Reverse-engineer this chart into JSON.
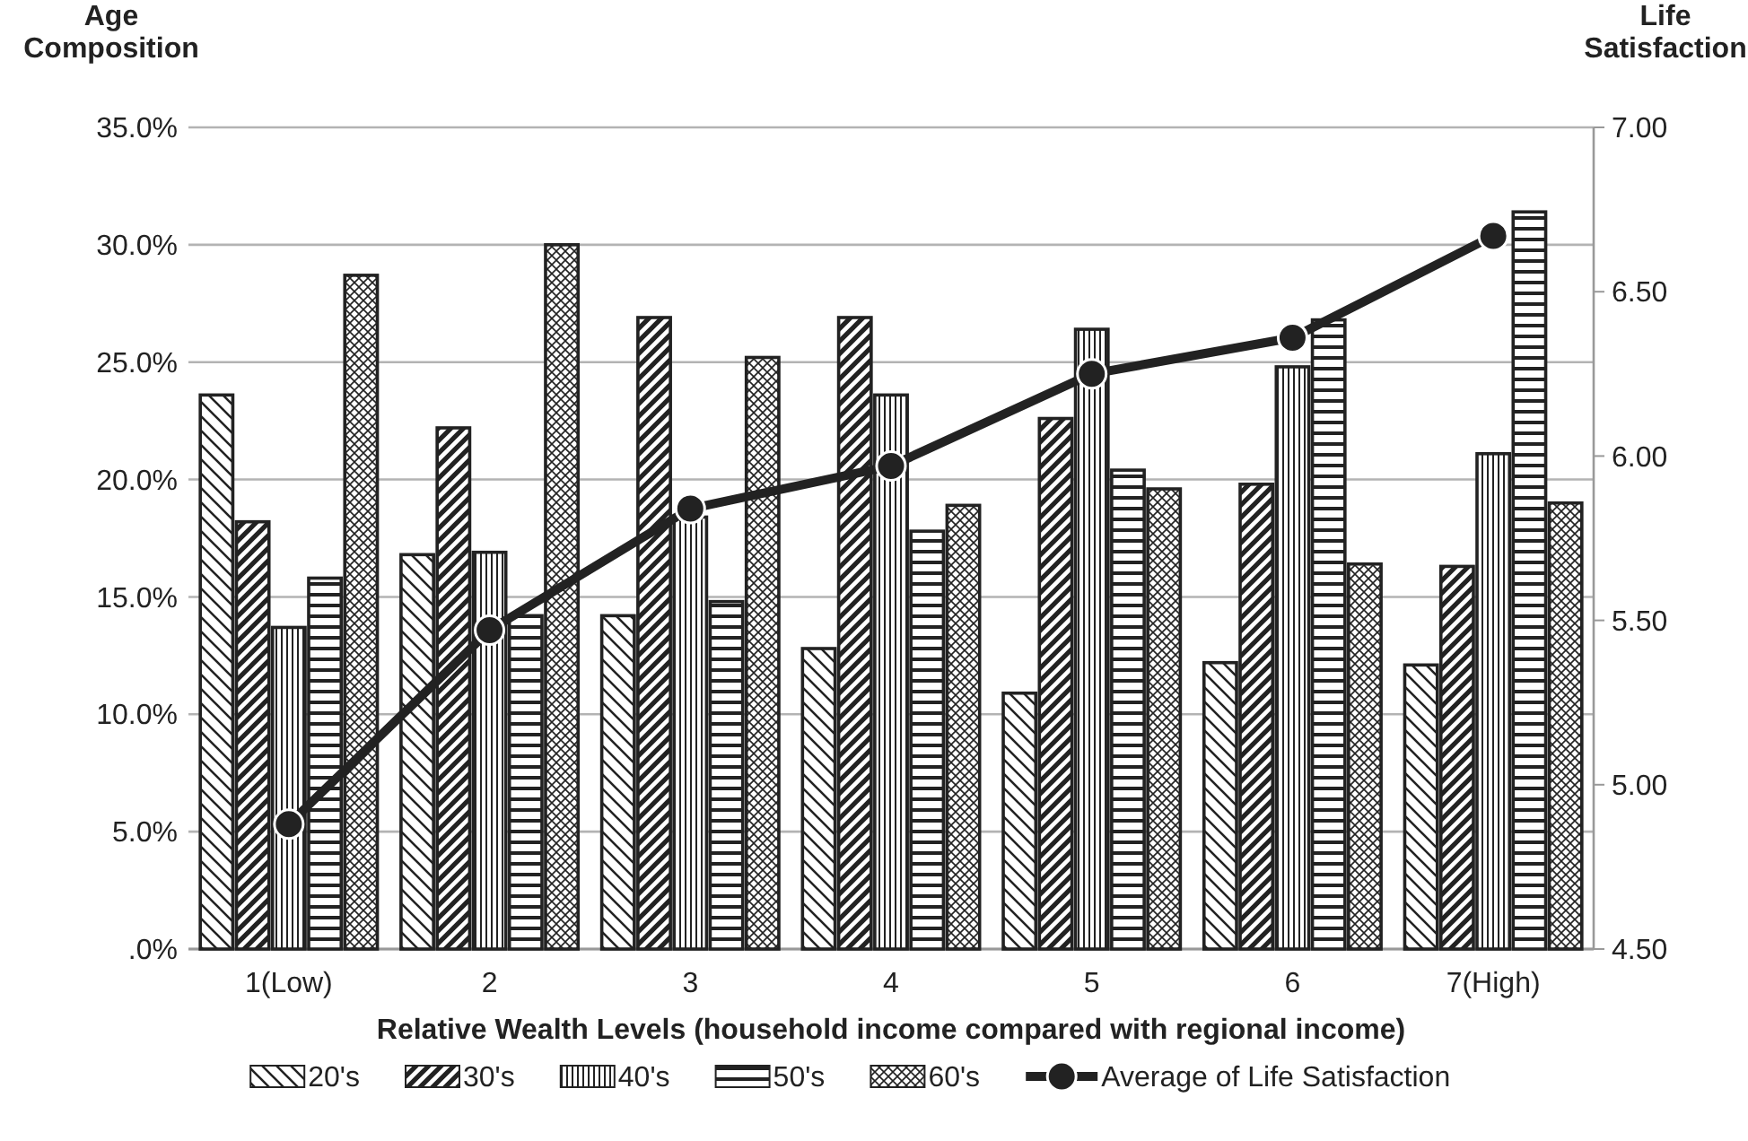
{
  "chart_data": {
    "type": "bar",
    "xlabel": "Relative Wealth Levels (household income compared with regional income)",
    "ylabel": "Age Composition",
    "y2label": "Life Satisfaction",
    "categories": [
      "1(Low)",
      "2",
      "3",
      "4",
      "5",
      "6",
      "7(High)"
    ],
    "series": [
      {
        "name": "20's",
        "color": "#222222",
        "values": [
          23.6,
          16.8,
          14.2,
          12.8,
          10.9,
          12.2,
          12.1
        ]
      },
      {
        "name": "30's",
        "color": "#222222",
        "values": [
          18.2,
          22.2,
          26.9,
          26.9,
          22.6,
          19.8,
          16.3
        ]
      },
      {
        "name": "40's",
        "color": "#222222",
        "values": [
          13.7,
          16.9,
          18.4,
          23.6,
          26.4,
          24.8,
          21.1
        ]
      },
      {
        "name": "50's",
        "color": "#222222",
        "values": [
          15.8,
          14.2,
          14.8,
          17.8,
          20.4,
          26.8,
          31.4
        ]
      },
      {
        "name": "60's",
        "color": "#222222",
        "values": [
          28.7,
          30.0,
          25.2,
          18.9,
          19.6,
          16.4,
          19.0
        ]
      },
      {
        "name": "Average of Life Satisfaction",
        "type": "line",
        "axis": "y2",
        "color": "#222222",
        "marker": "circle",
        "values": [
          4.88,
          5.47,
          5.84,
          5.97,
          6.25,
          6.36,
          6.67
        ]
      }
    ],
    "ylim": [
      0,
      35
    ],
    "yticks": [
      {
        "value": 0,
        "label": ".0%"
      },
      {
        "value": 5,
        "label": "5.0%"
      },
      {
        "value": 10,
        "label": "10.0%"
      },
      {
        "value": 15,
        "label": "15.0%"
      },
      {
        "value": 20,
        "label": "20.0%"
      },
      {
        "value": 25,
        "label": "25.0%"
      },
      {
        "value": 30,
        "label": "30.0%"
      },
      {
        "value": 35,
        "label": "35.0%"
      }
    ],
    "y2lim": [
      4.5,
      7
    ],
    "y2ticks": [
      {
        "value": 4.5,
        "label": "4.50"
      },
      {
        "value": 5,
        "label": "5.00"
      },
      {
        "value": 5.5,
        "label": "5.50"
      },
      {
        "value": 6,
        "label": "6.00"
      },
      {
        "value": 6.5,
        "label": "6.50"
      },
      {
        "value": 7,
        "label": "7.00"
      }
    ],
    "grid": "y",
    "legend": "bottom"
  }
}
